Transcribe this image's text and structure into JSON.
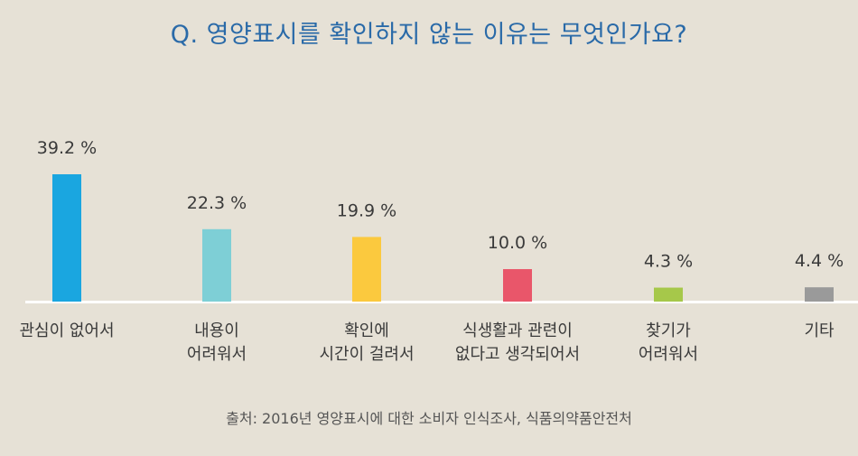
{
  "title": "Q. 영양표시를 확인하지 않는 이유는 무엇인가요?",
  "source": "출처: 2016년 영양표시에 대한 소비자 인식조사, 식품의약품안전처",
  "chart_data": {
    "type": "bar",
    "title": "Q. 영양표시를 확인하지 않는 이유는 무엇인가요?",
    "categories": [
      [
        "관심이 없어서"
      ],
      [
        "내용이",
        "어려워서"
      ],
      [
        "확인에",
        "시간이 걸려서"
      ],
      [
        "식생활과 관련이",
        "없다고 생각되어서"
      ],
      [
        "찾기가",
        "어려워서"
      ],
      [
        "기타"
      ]
    ],
    "values": [
      39.2,
      22.3,
      19.9,
      10.0,
      4.3,
      4.4
    ],
    "value_labels": [
      "39.2 %",
      "22.3 %",
      "19.9 %",
      "10.0 %",
      "4.3 %",
      "4.4 %"
    ],
    "colors": [
      "#1aa6e0",
      "#7ecfd6",
      "#fbc93e",
      "#e9566a",
      "#a6c84a",
      "#9a9a9a"
    ],
    "ylim": [
      0,
      39.2
    ],
    "grid": false,
    "legend": "none"
  }
}
